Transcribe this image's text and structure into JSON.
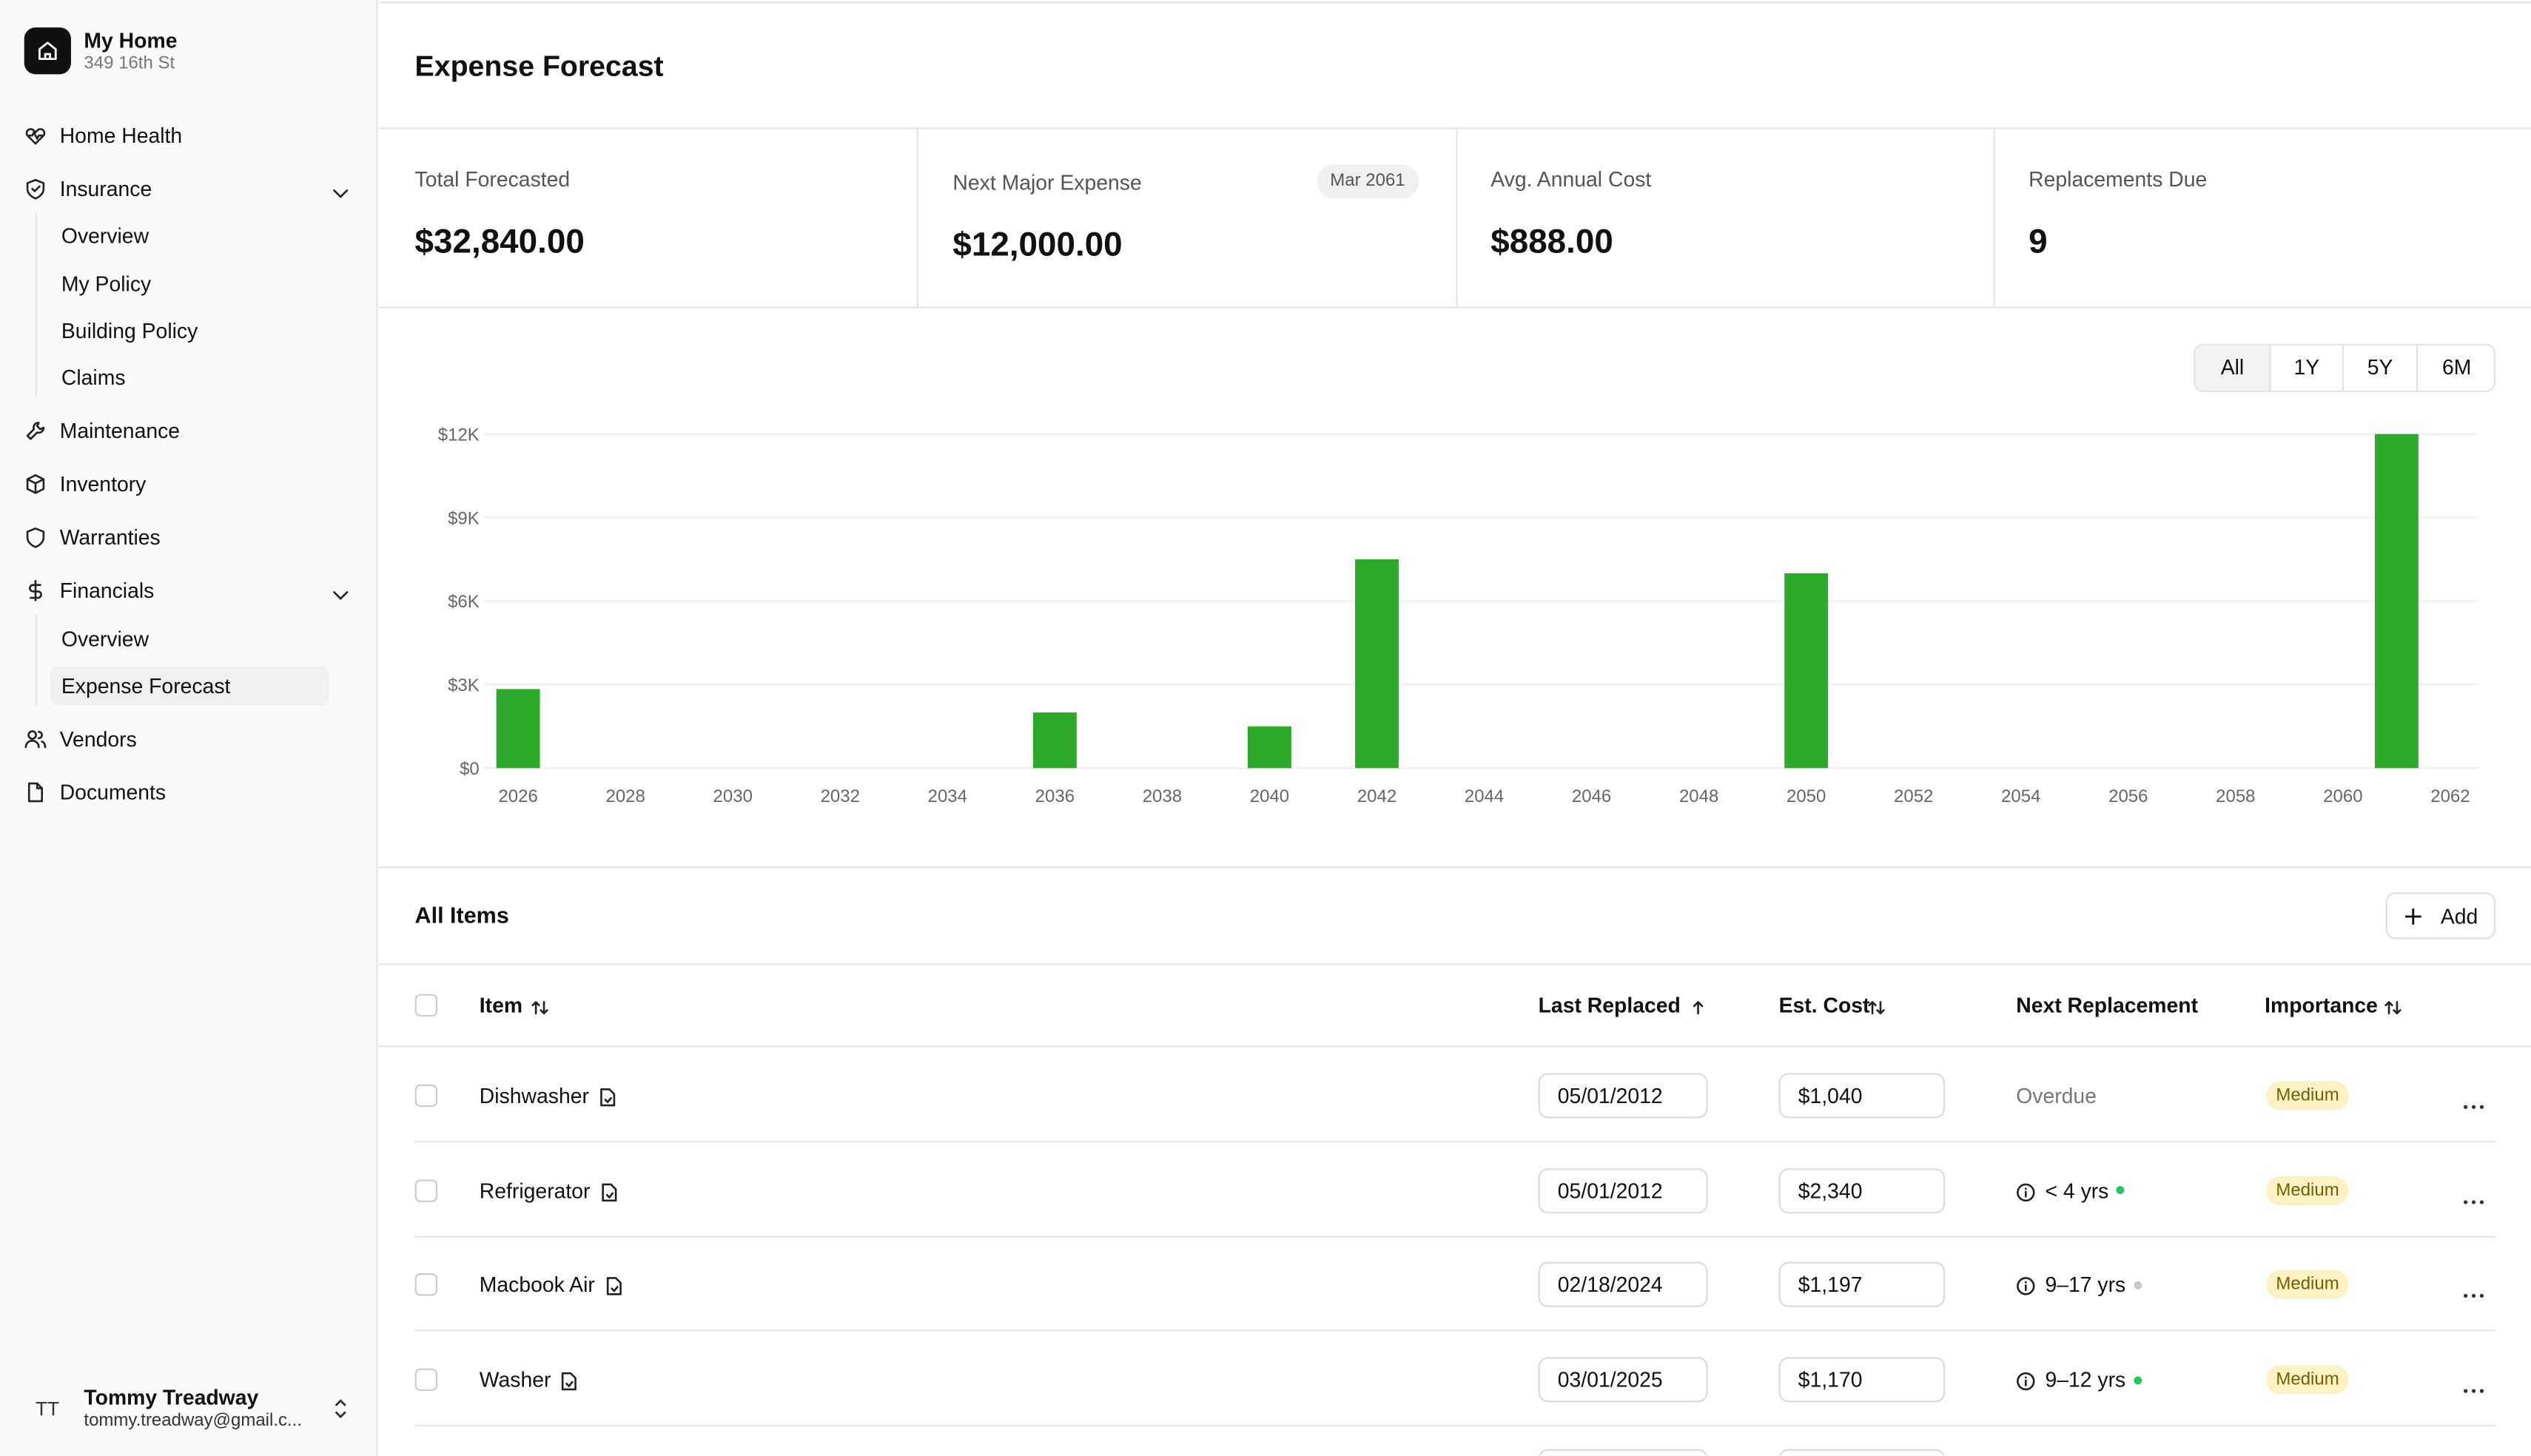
{
  "sidebar": {
    "home_name": "My Home",
    "home_address": "349 16th St",
    "nav": [
      {
        "label": "Home Health"
      },
      {
        "label": "Insurance",
        "children": [
          {
            "label": "Overview"
          },
          {
            "label": "My Policy"
          },
          {
            "label": "Building Policy"
          },
          {
            "label": "Claims"
          }
        ]
      },
      {
        "label": "Maintenance"
      },
      {
        "label": "Inventory"
      },
      {
        "label": "Warranties"
      },
      {
        "label": "Financials",
        "children": [
          {
            "label": "Overview"
          },
          {
            "label": "Expense Forecast",
            "active": true
          }
        ]
      },
      {
        "label": "Vendors"
      },
      {
        "label": "Documents"
      }
    ],
    "user": {
      "initials": "TT",
      "name": "Tommy Treadway",
      "email": "tommy.treadway@gmail.c..."
    }
  },
  "page_title": "Expense Forecast",
  "stats": [
    {
      "label": "Total Forecasted",
      "value": "$32,840.00"
    },
    {
      "label": "Next Major Expense",
      "value": "$12,000.00",
      "badge": "Mar 2061"
    },
    {
      "label": "Avg. Annual Cost",
      "value": "$888.00"
    },
    {
      "label": "Replacements Due",
      "value": "9"
    }
  ],
  "chart": {
    "type": "bar",
    "range_buttons": [
      "All",
      "1Y",
      "5Y",
      "6M"
    ],
    "selected_range_index": 0,
    "color": "#2eaa2a",
    "grid": true,
    "x": [
      2026,
      2036,
      2040,
      2042,
      2050,
      2061
    ],
    "values": [
      2840,
      2000,
      1500,
      7500,
      7000,
      12000
    ],
    "xlim": [
      2026,
      2062
    ],
    "xticks": [
      2026,
      2028,
      2030,
      2032,
      2034,
      2036,
      2038,
      2040,
      2042,
      2044,
      2046,
      2048,
      2050,
      2052,
      2054,
      2056,
      2058,
      2060,
      2062
    ],
    "ylim": [
      0,
      12000
    ],
    "yticks": [
      {
        "value": 0,
        "label": "$0"
      },
      {
        "value": 3000,
        "label": "$3K"
      },
      {
        "value": 6000,
        "label": "$6K"
      },
      {
        "value": 9000,
        "label": "$9K"
      },
      {
        "value": 12000,
        "label": "$12K"
      }
    ]
  },
  "items": {
    "title": "All Items",
    "add_label": "Add",
    "columns": [
      "Item",
      "Last Replaced",
      "Est. Cost",
      "Next Replacement",
      "Importance"
    ],
    "rows": [
      {
        "item": "Dishwasher",
        "last_replaced": "05/01/2012",
        "est_cost": "$1,040",
        "next_replacement": "Overdue",
        "importance": "Medium"
      },
      {
        "item": "Refrigerator",
        "last_replaced": "05/01/2012",
        "est_cost": "$2,340",
        "next_replacement": "< 4 yrs",
        "status_color": "#22c55e",
        "importance": "Medium"
      },
      {
        "item": "Macbook Air",
        "last_replaced": "02/18/2024",
        "est_cost": "$1,197",
        "next_replacement": "9–17 yrs",
        "status_color": "#c8c8c8",
        "importance": "Medium"
      },
      {
        "item": "Washer",
        "last_replaced": "03/01/2025",
        "est_cost": "$1,170",
        "next_replacement": "9–12 yrs",
        "status_color": "#22c55e",
        "importance": "Medium"
      }
    ]
  }
}
